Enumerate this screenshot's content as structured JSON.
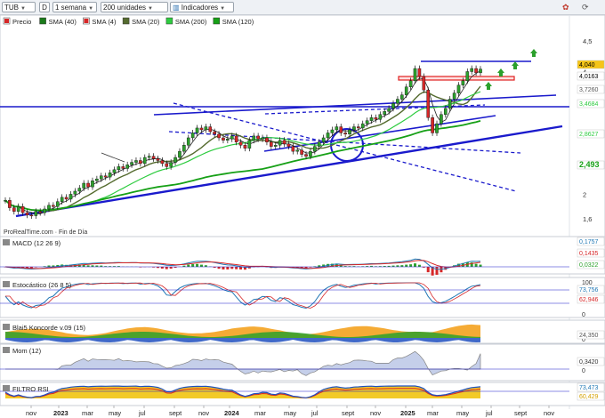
{
  "toolbar": {
    "symbol": "TUB",
    "mode_letter": "D",
    "period": "1 semana",
    "units": "200 unidades",
    "indicators": "Indicadores"
  },
  "main_panel": {
    "legend": [
      {
        "label": "Precio",
        "color": "#000000"
      },
      {
        "label": "SMA (40)",
        "color": "#1a7a1a"
      },
      {
        "label": "SMA (4)",
        "color": "#000000"
      },
      {
        "label": "SMA (20)",
        "color": "#556b2f"
      },
      {
        "label": "SMA (200)",
        "color": "#2ecc40"
      },
      {
        "label": "SMA (120)",
        "color": "#16a016"
      }
    ],
    "source": "ProRealTime.com · Fin de Día",
    "y_ticks": [
      "4,5",
      "4",
      "3,5",
      "3",
      "2,5",
      "2",
      "1,6"
    ],
    "price_labels": [
      {
        "text": "4,040",
        "bg": "#f5c518",
        "fg": "#000000"
      },
      {
        "text": "4,0163",
        "bg": "#ffffff",
        "fg": "#000000"
      },
      {
        "text": "3,7260",
        "bg": "#ffffff",
        "fg": "#555555"
      },
      {
        "text": "3,4684",
        "bg": "#ffffff",
        "fg": "#2ecc40"
      },
      {
        "text": "2,8627",
        "bg": "#ffffff",
        "fg": "#2ecc40"
      },
      {
        "text": "2,493",
        "bg": "#ffffff",
        "fg": "#16a016"
      }
    ]
  },
  "macd": {
    "title": "MACD (12 26 9)",
    "labels": [
      {
        "text": "0,1757",
        "fg": "#1f77b4"
      },
      {
        "text": "0,1435",
        "fg": "#d62728"
      },
      {
        "text": "0,0322",
        "fg": "#2ca02c"
      }
    ]
  },
  "stoch": {
    "title": "Estocástico (26 8 5)",
    "ticks": [
      "100",
      "0"
    ],
    "labels": [
      {
        "text": "73,756",
        "fg": "#1f77b4"
      },
      {
        "text": "62,946",
        "fg": "#d62728"
      }
    ]
  },
  "koncorde": {
    "title": "Blai5 Koncorde v.09 (15)",
    "ticks": [
      "0"
    ],
    "labels": [
      {
        "text": "24,350",
        "fg": "#555555"
      }
    ]
  },
  "mom": {
    "title": "Mom (12)",
    "ticks": [
      "0"
    ],
    "labels": [
      {
        "text": "0,3420",
        "fg": "#333333"
      }
    ]
  },
  "rsi": {
    "title": "FILTRO RSI",
    "labels": [
      {
        "text": "73,473",
        "fg": "#1f77b4"
      },
      {
        "text": "60,429",
        "fg": "#d4a000"
      }
    ]
  },
  "x_axis": {
    "ticks": [
      "nov",
      "2023",
      "mar",
      "may",
      "jul",
      "sept",
      "nov",
      "2024",
      "mar",
      "may",
      "jul",
      "sept",
      "nov",
      "2025",
      "mar",
      "may",
      "jul",
      "sept",
      "nov"
    ]
  },
  "chart_data": {
    "type": "candlestick",
    "ylim": [
      1.6,
      4.5
    ],
    "ylabel": "",
    "xlabel": "",
    "current_price": 4.04,
    "series": [
      {
        "name": "SMA (4)",
        "last": 4.0163
      },
      {
        "name": "SMA (20)",
        "last": 3.726
      },
      {
        "name": "SMA (40)",
        "last": 3.4684
      },
      {
        "name": "SMA (120)",
        "last": 2.8627
      },
      {
        "name": "SMA (200)",
        "last": 2.493
      }
    ],
    "closes": [
      1.9,
      1.78,
      1.72,
      1.8,
      1.7,
      1.66,
      1.65,
      1.72,
      1.7,
      1.76,
      1.82,
      1.8,
      1.88,
      1.95,
      1.92,
      2.0,
      2.05,
      2.1,
      2.18,
      2.12,
      2.22,
      2.25,
      2.3,
      2.28,
      2.35,
      2.4,
      2.45,
      2.42,
      2.48,
      2.52,
      2.55,
      2.5,
      2.6,
      2.62,
      2.58,
      2.55,
      2.5,
      2.45,
      2.52,
      2.6,
      2.7,
      2.8,
      2.92,
      3.0,
      3.08,
      3.05,
      3.1,
      3.02,
      2.98,
      2.92,
      2.88,
      2.9,
      2.95,
      2.85,
      2.8,
      2.75,
      2.88,
      2.95,
      2.9,
      2.92,
      2.85,
      2.78,
      2.8,
      2.88,
      2.82,
      2.78,
      2.7,
      2.72,
      2.65,
      2.62,
      2.7,
      2.78,
      2.85,
      2.92,
      3.0,
      3.05,
      3.1,
      3.0,
      2.98,
      3.05,
      3.1,
      3.08,
      3.15,
      3.2,
      3.25,
      3.22,
      3.3,
      3.35,
      3.4,
      3.48,
      3.55,
      3.62,
      3.75,
      3.85,
      4.05,
      3.92,
      3.7,
      3.25,
      3.0,
      3.15,
      3.3,
      3.4,
      3.55,
      3.65,
      3.78,
      3.85,
      4.0,
      4.05,
      3.98,
      4.04
    ]
  }
}
